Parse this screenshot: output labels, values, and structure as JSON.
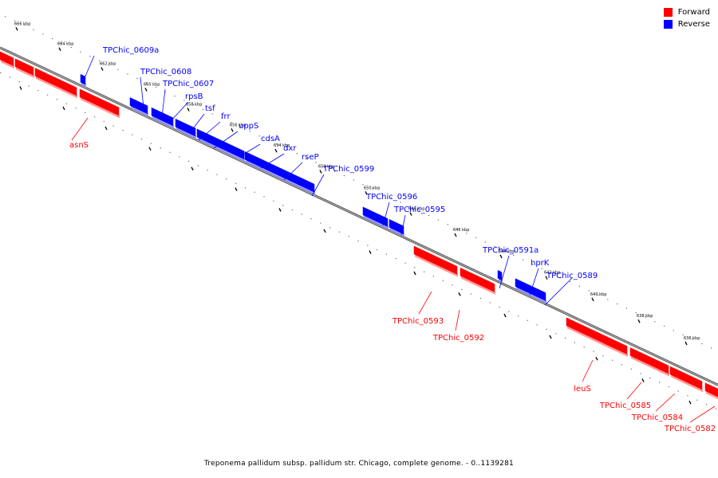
{
  "legend": {
    "forward": {
      "label": "Forward",
      "color": "#ff0000"
    },
    "reverse": {
      "label": "Reverse",
      "color": "#0000ff"
    }
  },
  "caption": "Treponema pallidum subsp. pallidum str. Chicago, complete genome. - 0..1139281",
  "ticks": [
    {
      "label": "666 kbp"
    },
    {
      "label": "664 kbp"
    },
    {
      "label": "662 kbp"
    },
    {
      "label": "660 kbp"
    },
    {
      "label": "658 kbp"
    },
    {
      "label": "656 kbp"
    },
    {
      "label": "654 kbp"
    },
    {
      "label": "652 kbp"
    },
    {
      "label": "650 kbp"
    },
    {
      "label": "648 kbp"
    },
    {
      "label": "646 kbp"
    },
    {
      "label": "644 kbp"
    },
    {
      "label": "642 kbp"
    },
    {
      "label": "640 kbp"
    },
    {
      "label": "638 kbp"
    },
    {
      "label": "636 kbp"
    }
  ],
  "forward_genes": [
    {
      "label": "asnS"
    },
    {
      "label": "TPChic_0593"
    },
    {
      "label": "TPChic_0592"
    },
    {
      "label": "leuS"
    },
    {
      "label": "TPChic_0585"
    },
    {
      "label": "TPChic_0584"
    },
    {
      "label": "TPChic_0582"
    }
  ],
  "reverse_genes": [
    {
      "label": "TPChic_0609a"
    },
    {
      "label": "TPChic_0608"
    },
    {
      "label": "TPChic_0607"
    },
    {
      "label": "rpsB"
    },
    {
      "label": "tsf"
    },
    {
      "label": "frr"
    },
    {
      "label": "uppS"
    },
    {
      "label": "cdsA"
    },
    {
      "label": "dxr"
    },
    {
      "label": "rseP"
    },
    {
      "label": "TPChic_0599"
    },
    {
      "label": "TPChic_0596"
    },
    {
      "label": "TPChic_0595"
    },
    {
      "label": "TPChic_0591a"
    },
    {
      "label": "hprK"
    },
    {
      "label": "TPChic_0589"
    }
  ]
}
